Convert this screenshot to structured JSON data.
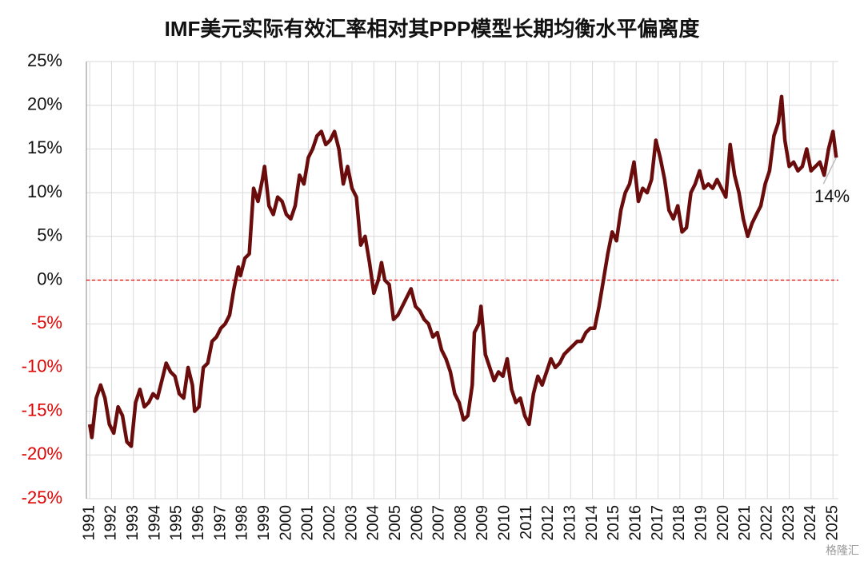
{
  "chart_data": {
    "type": "line",
    "title": "IMF美元实际有效汇率相对其PPP模型长期均衡水平偏离度",
    "annotation": "14%",
    "watermark": "格隆汇",
    "x": [
      1991.0,
      1991.1,
      1991.3,
      1991.5,
      1991.7,
      1991.9,
      1992.1,
      1992.3,
      1992.5,
      1992.7,
      1992.9,
      1993.1,
      1993.3,
      1993.5,
      1993.7,
      1993.9,
      1994.1,
      1994.3,
      1994.5,
      1994.7,
      1994.9,
      1995.1,
      1995.3,
      1995.5,
      1995.7,
      1995.8,
      1996.0,
      1996.2,
      1996.4,
      1996.6,
      1996.8,
      1997.0,
      1997.2,
      1997.4,
      1997.6,
      1997.8,
      1997.9,
      1998.1,
      1998.3,
      1998.5,
      1998.7,
      1998.9,
      1999.0,
      1999.2,
      1999.4,
      1999.6,
      1999.8,
      2000.0,
      2000.2,
      2000.4,
      2000.6,
      2000.8,
      2001.0,
      2001.2,
      2001.4,
      2001.6,
      2001.8,
      2002.0,
      2002.2,
      2002.4,
      2002.6,
      2002.8,
      2003.0,
      2003.2,
      2003.4,
      2003.6,
      2003.8,
      2004.0,
      2004.2,
      2004.35,
      2004.5,
      2004.7,
      2004.9,
      2005.1,
      2005.3,
      2005.5,
      2005.7,
      2005.9,
      2006.1,
      2006.3,
      2006.5,
      2006.7,
      2006.9,
      2007.1,
      2007.3,
      2007.5,
      2007.7,
      2007.9,
      2008.1,
      2008.3,
      2008.5,
      2008.6,
      2008.8,
      2008.9,
      2009.1,
      2009.3,
      2009.5,
      2009.7,
      2009.9,
      2010.1,
      2010.3,
      2010.5,
      2010.7,
      2010.9,
      2011.1,
      2011.3,
      2011.5,
      2011.7,
      2011.9,
      2012.1,
      2012.3,
      2012.5,
      2012.7,
      2012.9,
      2013.1,
      2013.3,
      2013.5,
      2013.7,
      2013.9,
      2014.1,
      2014.3,
      2014.5,
      2014.7,
      2014.9,
      2015.1,
      2015.3,
      2015.5,
      2015.7,
      2015.9,
      2016.1,
      2016.3,
      2016.5,
      2016.7,
      2016.9,
      2017.1,
      2017.3,
      2017.5,
      2017.7,
      2017.9,
      2018.1,
      2018.3,
      2018.5,
      2018.7,
      2018.9,
      2019.1,
      2019.3,
      2019.5,
      2019.7,
      2019.9,
      2020.1,
      2020.3,
      2020.5,
      2020.7,
      2020.9,
      2021.1,
      2021.3,
      2021.5,
      2021.7,
      2021.9,
      2022.1,
      2022.3,
      2022.5,
      2022.65,
      2022.8,
      2023.0,
      2023.2,
      2023.4,
      2023.6,
      2023.8,
      2024.0,
      2024.2,
      2024.4,
      2024.6,
      2024.8,
      2025.0,
      2025.15
    ],
    "series": [
      {
        "color": "#6b0c0c",
        "values": [
          -16.5,
          -18,
          -13.5,
          -12,
          -13.5,
          -16.5,
          -17.5,
          -14.5,
          -15.5,
          -18.5,
          -19,
          -14,
          -12.5,
          -14.5,
          -14,
          -13,
          -13.5,
          -11.5,
          -9.5,
          -10.5,
          -11,
          -13,
          -13.5,
          -10,
          -12,
          -15,
          -14.5,
          -10,
          -9.5,
          -7,
          -6.5,
          -5.5,
          -5,
          -4,
          -1,
          1.5,
          0.5,
          2.5,
          3,
          10.5,
          9,
          11.5,
          13,
          8.5,
          7.5,
          9.5,
          9,
          7.5,
          7,
          8.5,
          12,
          11,
          14,
          15,
          16.5,
          17,
          15.5,
          16,
          17,
          15,
          11,
          13,
          10.5,
          9.5,
          4,
          5,
          2,
          -1.5,
          0,
          2,
          0,
          -0.5,
          -4.5,
          -4,
          -3,
          -2,
          -1,
          -3,
          -3.5,
          -4.5,
          -5,
          -6.5,
          -6,
          -8,
          -9,
          -10.5,
          -13,
          -14,
          -16,
          -15.5,
          -12,
          -6,
          -5,
          -3,
          -8.5,
          -10,
          -11.5,
          -10.5,
          -11,
          -9,
          -12.5,
          -14,
          -13.5,
          -15.5,
          -16.5,
          -13,
          -11,
          -12,
          -10.5,
          -9,
          -10,
          -9.5,
          -8.5,
          -8,
          -7.5,
          -7,
          -7,
          -6,
          -5.5,
          -5.5,
          -3,
          0,
          3,
          5.5,
          4.5,
          8,
          10,
          11,
          13.5,
          9,
          10.5,
          10,
          11.5,
          16,
          14,
          11.5,
          8,
          7,
          8.5,
          5.5,
          6,
          10,
          11,
          12.5,
          10.5,
          11,
          10.5,
          11.5,
          10.5,
          9.5,
          15.5,
          12,
          10,
          7,
          5,
          6.5,
          7.5,
          8.5,
          11,
          12.5,
          16.5,
          18,
          21,
          16,
          13,
          13.5,
          12.5,
          13,
          15,
          12.5,
          13,
          13.5,
          12,
          15,
          17,
          14
        ]
      }
    ],
    "xlim": [
      1990.85,
      2025.25
    ],
    "xticks": [
      1991,
      1992,
      1993,
      1994,
      1995,
      1996,
      1997,
      1998,
      1999,
      2000,
      2001,
      2002,
      2003,
      2004,
      2005,
      2006,
      2007,
      2008,
      2009,
      2010,
      2011,
      2012,
      2013,
      2014,
      2015,
      2016,
      2017,
      2018,
      2019,
      2020,
      2021,
      2022,
      2023,
      2024,
      2025
    ],
    "ylim": [
      -25,
      25
    ],
    "yticks": [
      {
        "value": 25,
        "label": "25%"
      },
      {
        "value": 20,
        "label": "20%"
      },
      {
        "value": 15,
        "label": "15%"
      },
      {
        "value": 10,
        "label": "10%"
      },
      {
        "value": 5,
        "label": "5%"
      },
      {
        "value": 0,
        "label": "0%"
      },
      {
        "value": -5,
        "label": "-5%"
      },
      {
        "value": -10,
        "label": "-10%"
      },
      {
        "value": -15,
        "label": "-15%"
      },
      {
        "value": -20,
        "label": "-20%"
      },
      {
        "value": -25,
        "label": "-25%"
      }
    ],
    "grid": true
  }
}
